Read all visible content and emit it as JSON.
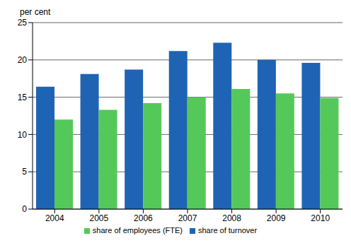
{
  "chart_data": {
    "type": "bar",
    "y_label": "per cent",
    "categories": [
      "2004",
      "2005",
      "2006",
      "2007",
      "2008",
      "2009",
      "2010"
    ],
    "series": [
      {
        "name": "share of turnover",
        "color": "#1f64b4",
        "values": [
          16.4,
          18.1,
          18.7,
          21.2,
          22.3,
          20.0,
          19.6
        ]
      },
      {
        "name": "share of employees (FTE)",
        "color": "#55c85a",
        "values": [
          12.0,
          13.3,
          14.2,
          15.0,
          16.1,
          15.5,
          14.9
        ]
      }
    ],
    "ylim": [
      0,
      25
    ],
    "yticks": [
      0,
      5,
      10,
      15,
      20,
      25
    ],
    "grid": true,
    "legend": "bottom"
  }
}
